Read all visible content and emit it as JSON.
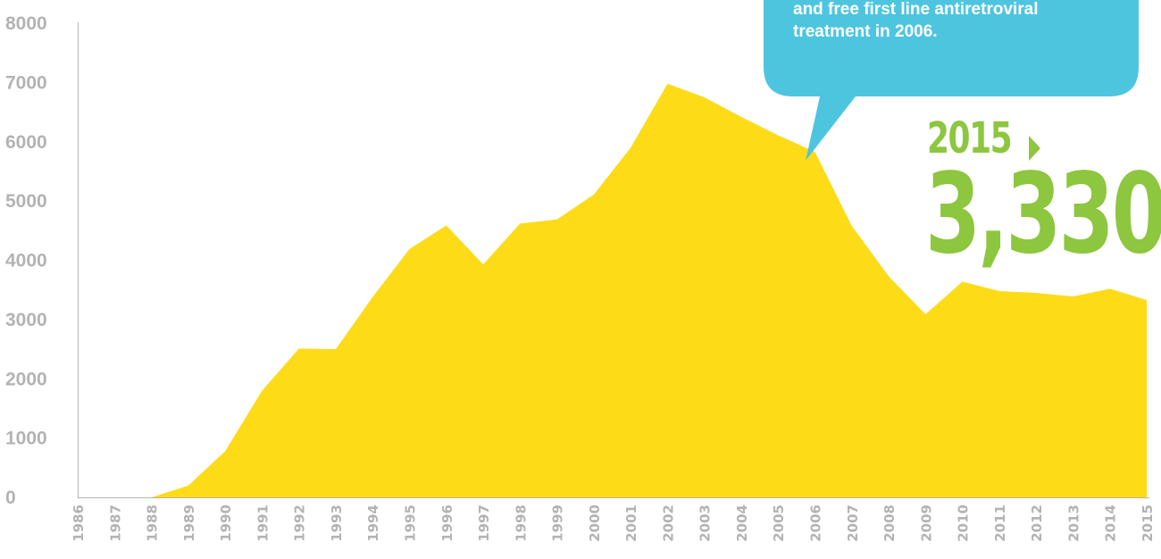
{
  "colors": {
    "area": "#fedb17",
    "tick_text": "#b3b3b3",
    "axis": "#b3b3b3",
    "callout_bg": "#4ec5df",
    "highlight": "#8dc63f"
  },
  "callout": {
    "lines": [
      "and free first line antiretroviral",
      "treatment in 2006."
    ]
  },
  "highlight": {
    "year": "2015",
    "value": "3,330"
  },
  "chart_data": {
    "type": "area",
    "x": [
      "1986",
      "1987",
      "1988",
      "1989",
      "1990",
      "1991",
      "1992",
      "1993",
      "1994",
      "1995",
      "1996",
      "1997",
      "1998",
      "1999",
      "2000",
      "2001",
      "2002",
      "2003",
      "2004",
      "2005",
      "2006",
      "2007",
      "2008",
      "2009",
      "2010",
      "2011",
      "2012",
      "2013",
      "2014",
      "2015"
    ],
    "values": [
      0,
      0,
      0,
      200,
      780,
      1800,
      2510,
      2500,
      3380,
      4190,
      4590,
      3930,
      4620,
      4690,
      5110,
      5900,
      6980,
      6750,
      6420,
      6110,
      5830,
      4580,
      3730,
      3090,
      3640,
      3480,
      3450,
      3390,
      3520,
      3330
    ],
    "ylim": [
      0,
      8000
    ],
    "yticks": [
      "0",
      "1000",
      "2000",
      "3000",
      "4000",
      "5000",
      "6000",
      "7000",
      "8000"
    ],
    "grid": false,
    "legend": "none"
  }
}
